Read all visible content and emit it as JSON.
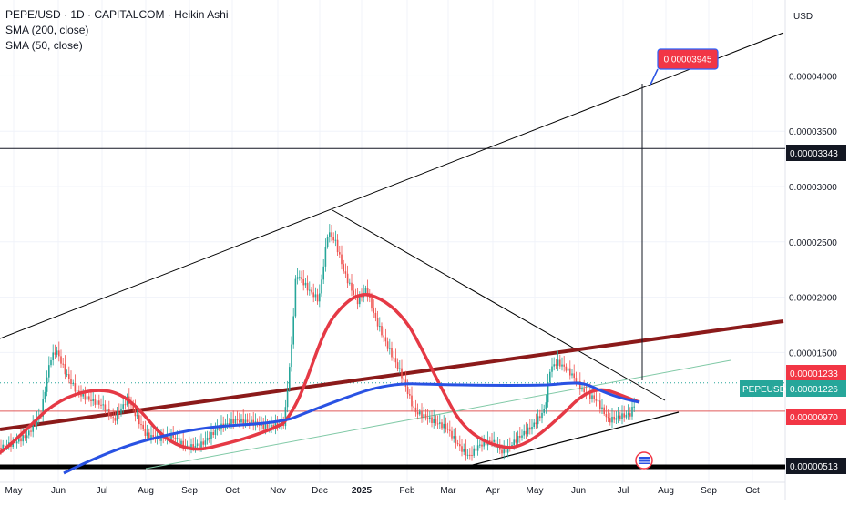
{
  "chart_data": {
    "type": "line",
    "legend": {
      "symbol_line": "PEPE/USD · 1D · CAPITALCOM · Heikin Ashi",
      "indicators": [
        "SMA (200, close)",
        "SMA (50, close)"
      ]
    },
    "currency": "USD",
    "ylim": [
      4.5e-06,
      4.55e-05
    ],
    "y_ticks": [
      "0.00004000",
      "0.00003500",
      "0.00003000",
      "0.00002500",
      "0.00002000",
      "0.00001500"
    ],
    "x_ticks": [
      "May",
      "Jun",
      "Jul",
      "Aug",
      "Sep",
      "Oct",
      "Nov",
      "Dec",
      "2025",
      "Feb",
      "Mar",
      "Apr",
      "May",
      "Jun",
      "Jul",
      "Aug",
      "Sep",
      "Oct"
    ],
    "price_labels": [
      {
        "text": "0.00003343",
        "style": "black",
        "value": 3.343e-05
      },
      {
        "text": "0.00001233",
        "style": "red",
        "value": 1.233e-05
      },
      {
        "text": "0.00001226",
        "style": "teal",
        "value": 1.226e-05,
        "ticker": "PEPEUSD"
      },
      {
        "text": "0.00000970",
        "style": "red",
        "value": 9.7e-06
      },
      {
        "text": "0.00000513",
        "style": "black",
        "value": 5.13e-06
      }
    ],
    "target_callout": "0.00003945",
    "series": [
      {
        "name": "SMA (50, close)",
        "color": "#e53945"
      },
      {
        "name": "SMA (200, close)",
        "color": "#2952e3"
      }
    ],
    "colors": {
      "up": "#26a69a",
      "down": "#ef5350",
      "sma50": "#e53945",
      "sma200": "#2952e3",
      "channel": "#8b1a1a",
      "trendline": "#000000",
      "teal_line": "#80c9a6"
    }
  }
}
